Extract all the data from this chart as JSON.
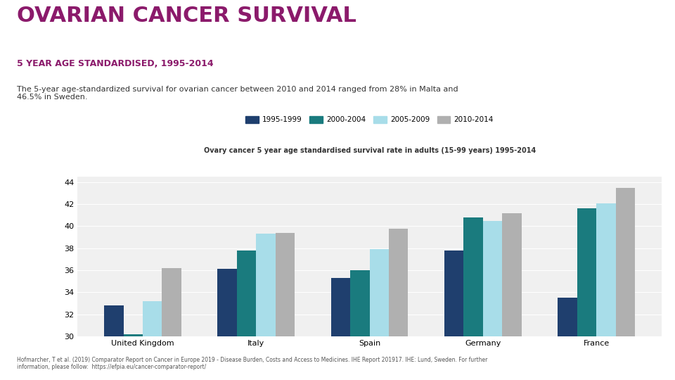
{
  "title_main": "OVARIAN CANCER SURVIVAL",
  "title_sub": "5 YEAR AGE STANDARDISED, 1995-2014",
  "description": "The 5-year age-standardized survival for ovarian cancer between 2010 and 2014 ranged from 28% in Malta and\n46.5% in Sweden.",
  "chart_title": "Ovary cancer 5 year age standardised survival rate in adults (15-99 years) 1995-2014",
  "footnote": "Hofmarcher, T et al. (2019) Comparator Report on Cancer in Europe 2019 - Disease Burden, Costs and Access to Medicines. IHE Report 201917. IHE: Lund, Sweden. For further\ninformation, please follow:  https://efpia.eu/cancer-comparator-report/",
  "categories": [
    "United Kingdom",
    "Italy",
    "Spain",
    "Germany",
    "France"
  ],
  "series": [
    {
      "label": "1995-1999",
      "color": "#1f3f6e",
      "values": [
        32.8,
        36.1,
        35.3,
        37.8,
        33.5
      ]
    },
    {
      "label": "2000-2004",
      "color": "#1a7b7e",
      "values": [
        30.2,
        37.8,
        36.0,
        40.8,
        41.6
      ]
    },
    {
      "label": "2005-2009",
      "color": "#a8dde9",
      "values": [
        33.2,
        39.3,
        37.9,
        40.5,
        42.1
      ]
    },
    {
      "label": "2010-2014",
      "color": "#b0b0b0",
      "values": [
        36.2,
        39.4,
        39.8,
        41.2,
        43.5
      ]
    }
  ],
  "ylim": [
    30,
    44.5
  ],
  "yticks": [
    30,
    32,
    34,
    36,
    38,
    40,
    42,
    44
  ],
  "background_color": "#ffffff",
  "title_main_color": "#8b1a6b",
  "title_sub_color": "#8b1a6b",
  "description_color": "#333333",
  "chart_bg_color": "#f0f0f0",
  "footnote_color": "#555555"
}
